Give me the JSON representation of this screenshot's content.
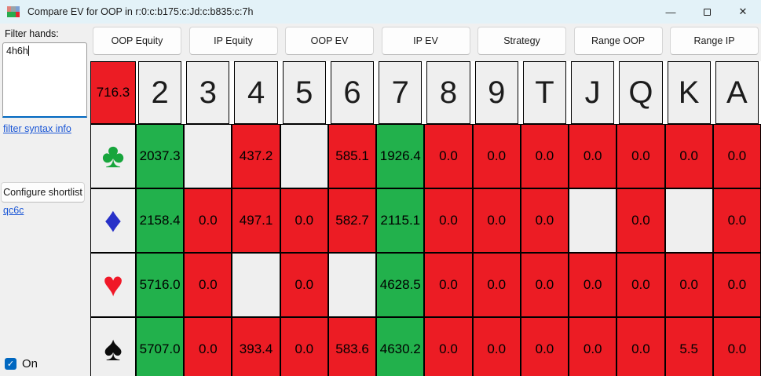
{
  "window": {
    "title": "Compare EV for OOP in r:0:c:b175:c:Jd:c:b835:c:7h",
    "controls": {
      "minimize_icon": "—",
      "close_icon": "✕"
    }
  },
  "toolbar": {
    "buttons": [
      "OOP Equity",
      "IP Equity",
      "OOP EV",
      "IP EV",
      "Strategy",
      "Range OOP",
      "Range IP"
    ]
  },
  "sidebar": {
    "filter_label": "Filter hands:",
    "filter_value": "4h6h",
    "syntax_link": "filter syntax info",
    "shortlist_button": "Configure shortlist",
    "shortlist_link": "qc6c",
    "on_label": "On",
    "on_checked": true,
    "check_icon": "✓"
  },
  "colors": {
    "green": "#22b14c",
    "red": "#ec1c24",
    "empty": "#efefef",
    "accent": "#0067c0"
  },
  "grid": {
    "corner_value": "716.3",
    "columns": [
      "2",
      "3",
      "4",
      "5",
      "6",
      "7",
      "8",
      "9",
      "T",
      "J",
      "Q",
      "K",
      "A"
    ],
    "rows": [
      {
        "suit_name": "clubs",
        "suit_icon": "♣",
        "suit_color": "#17a53c",
        "cells": [
          {
            "v": "2037.3",
            "s": "green"
          },
          {
            "v": "",
            "s": "empty"
          },
          {
            "v": "437.2",
            "s": "red"
          },
          {
            "v": "",
            "s": "empty"
          },
          {
            "v": "585.1",
            "s": "red"
          },
          {
            "v": "1926.4",
            "s": "green"
          },
          {
            "v": "0.0",
            "s": "red"
          },
          {
            "v": "0.0",
            "s": "red"
          },
          {
            "v": "0.0",
            "s": "red"
          },
          {
            "v": "0.0",
            "s": "red"
          },
          {
            "v": "0.0",
            "s": "red"
          },
          {
            "v": "0.0",
            "s": "red"
          },
          {
            "v": "0.0",
            "s": "red"
          }
        ]
      },
      {
        "suit_name": "diamonds",
        "suit_icon": "♦",
        "suit_color": "#2831c8",
        "cells": [
          {
            "v": "2158.4",
            "s": "green"
          },
          {
            "v": "0.0",
            "s": "red"
          },
          {
            "v": "497.1",
            "s": "red"
          },
          {
            "v": "0.0",
            "s": "red"
          },
          {
            "v": "582.7",
            "s": "red"
          },
          {
            "v": "2115.1",
            "s": "green"
          },
          {
            "v": "0.0",
            "s": "red"
          },
          {
            "v": "0.0",
            "s": "red"
          },
          {
            "v": "0.0",
            "s": "red"
          },
          {
            "v": "",
            "s": "empty"
          },
          {
            "v": "0.0",
            "s": "red"
          },
          {
            "v": "",
            "s": "empty"
          },
          {
            "v": "0.0",
            "s": "red"
          }
        ]
      },
      {
        "suit_name": "hearts",
        "suit_icon": "♥",
        "suit_color": "#f01828",
        "cells": [
          {
            "v": "5716.0",
            "s": "green"
          },
          {
            "v": "0.0",
            "s": "red"
          },
          {
            "v": "",
            "s": "empty"
          },
          {
            "v": "0.0",
            "s": "red"
          },
          {
            "v": "",
            "s": "empty"
          },
          {
            "v": "4628.5",
            "s": "green"
          },
          {
            "v": "0.0",
            "s": "red"
          },
          {
            "v": "0.0",
            "s": "red"
          },
          {
            "v": "0.0",
            "s": "red"
          },
          {
            "v": "0.0",
            "s": "red"
          },
          {
            "v": "0.0",
            "s": "red"
          },
          {
            "v": "0.0",
            "s": "red"
          },
          {
            "v": "0.0",
            "s": "red"
          }
        ]
      },
      {
        "suit_name": "spades",
        "suit_icon": "♠",
        "suit_color": "#0c0c0c",
        "cells": [
          {
            "v": "5707.0",
            "s": "green"
          },
          {
            "v": "0.0",
            "s": "red"
          },
          {
            "v": "393.4",
            "s": "red"
          },
          {
            "v": "0.0",
            "s": "red"
          },
          {
            "v": "583.6",
            "s": "red"
          },
          {
            "v": "4630.2",
            "s": "green"
          },
          {
            "v": "0.0",
            "s": "red"
          },
          {
            "v": "0.0",
            "s": "red"
          },
          {
            "v": "0.0",
            "s": "red"
          },
          {
            "v": "0.0",
            "s": "red"
          },
          {
            "v": "0.0",
            "s": "red"
          },
          {
            "v": "5.5",
            "s": "red"
          },
          {
            "v": "0.0",
            "s": "red"
          }
        ]
      }
    ]
  }
}
